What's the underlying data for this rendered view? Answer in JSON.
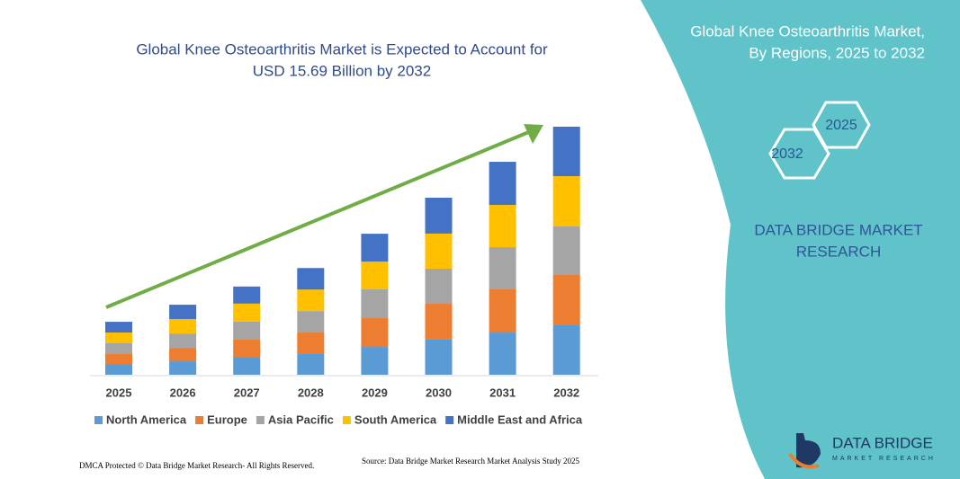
{
  "chart_data": {
    "type": "stacked-bar",
    "title": [
      "Global Knee Osteoarthritis Market is Expected to Account for",
      "USD 15.69 Billion by 2032"
    ],
    "categories": [
      "2025",
      "2026",
      "2027",
      "2028",
      "2029",
      "2030",
      "2031",
      "2032"
    ],
    "series": [
      {
        "name": "North America",
        "color": "#5b9bd5",
        "values": [
          0.68,
          0.85,
          1.08,
          1.31,
          1.76,
          2.22,
          2.67,
          3.13
        ]
      },
      {
        "name": "Europe",
        "color": "#ed7d31",
        "values": [
          0.63,
          0.85,
          1.14,
          1.36,
          1.82,
          2.27,
          2.73,
          3.18
        ]
      },
      {
        "name": "Asia Pacific",
        "color": "#a5a5a5",
        "values": [
          0.68,
          0.91,
          1.14,
          1.36,
          1.82,
          2.22,
          2.67,
          3.07
        ]
      },
      {
        "name": "South America",
        "color": "#ffc000",
        "values": [
          0.68,
          0.91,
          1.14,
          1.36,
          1.76,
          2.22,
          2.67,
          3.18
        ]
      },
      {
        "name": "Middle East and Africa",
        "color": "#4472c4",
        "values": [
          0.68,
          0.91,
          1.08,
          1.36,
          1.76,
          2.27,
          2.73,
          3.13
        ]
      }
    ]
  },
  "panel": {
    "title": [
      "Global Knee Osteoarthritis Market,",
      "By Regions, 2025 to 2032"
    ],
    "hexagons": [
      "2025",
      "2032"
    ],
    "brand": [
      "DATA BRIDGE MARKET",
      "RESEARCH"
    ]
  },
  "logo": {
    "name": "DATA BRIDGE",
    "tagline": "MARKET RESEARCH"
  },
  "footer": {
    "left": "DMCA Protected © Data Bridge Market Research- All Rights Reserved.",
    "right": "Source: Data Bridge Market Research  Market Analysis Study 2025"
  }
}
